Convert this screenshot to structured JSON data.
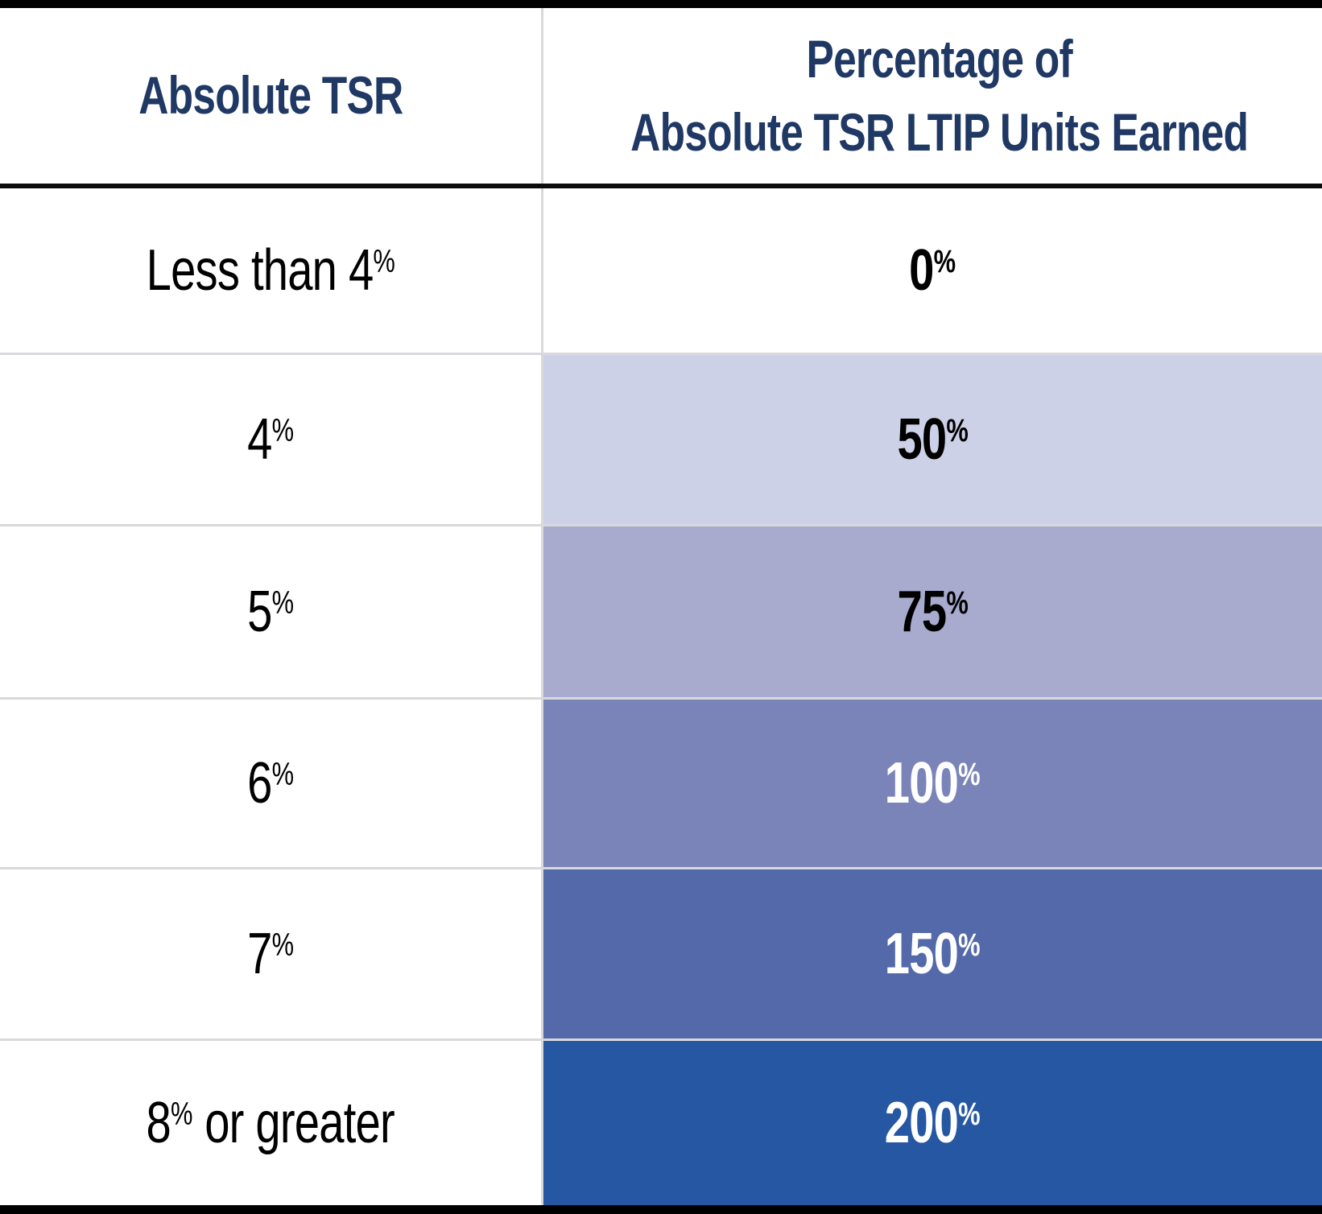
{
  "chart_data": {
    "type": "table",
    "title": "",
    "columns": [
      "Absolute TSR",
      "Percentage of Absolute TSR LTIP Units Earned"
    ],
    "rows": [
      [
        "Less than 4%",
        "0%"
      ],
      [
        "4%",
        "50%"
      ],
      [
        "5%",
        "75%"
      ],
      [
        "6%",
        "100%"
      ],
      [
        "7%",
        "150%"
      ],
      [
        "8% or greater",
        "200%"
      ]
    ],
    "layout_hints": "right column cells shaded in increasingly dark blue from 50% to 200%"
  },
  "table": {
    "header": {
      "col1": "Absolute TSR",
      "col2_line1": "Percentage of",
      "col2_line2": "Absolute TSR LTIP Units Earned"
    },
    "rows": [
      {
        "tsr_pre": "Less than 4",
        "tsr_sup": "%",
        "tsr_post": "",
        "value": "0",
        "value_sup": "%",
        "bg": "#ffffff",
        "fg": "#000000"
      },
      {
        "tsr_pre": "4",
        "tsr_sup": "%",
        "tsr_post": "",
        "value": "50",
        "value_sup": "%",
        "bg": "#cdd1e7",
        "fg": "#000000"
      },
      {
        "tsr_pre": "5",
        "tsr_sup": "%",
        "tsr_post": "",
        "value": "75",
        "value_sup": "%",
        "bg": "#a8abce",
        "fg": "#000000"
      },
      {
        "tsr_pre": "6",
        "tsr_sup": "%",
        "tsr_post": "",
        "value": "100",
        "value_sup": "%",
        "bg": "#7a84b8",
        "fg": "#ffffff"
      },
      {
        "tsr_pre": "7",
        "tsr_sup": "%",
        "tsr_post": "",
        "value": "150",
        "value_sup": "%",
        "bg": "#5469a9",
        "fg": "#ffffff"
      },
      {
        "tsr_pre": "8",
        "tsr_sup": "%",
        "tsr_post": " or greater",
        "value": "200",
        "value_sup": "%",
        "bg": "#2557a2",
        "fg": "#ffffff"
      }
    ],
    "colors": {
      "header_text": "#1f3864",
      "border_black": "#000000",
      "grid_line": "#d9d9d9",
      "shade_50": "#cdd1e7",
      "shade_75": "#a8abce",
      "shade_100": "#7a84b8",
      "shade_150": "#5469a9",
      "shade_200": "#2557a2"
    }
  }
}
